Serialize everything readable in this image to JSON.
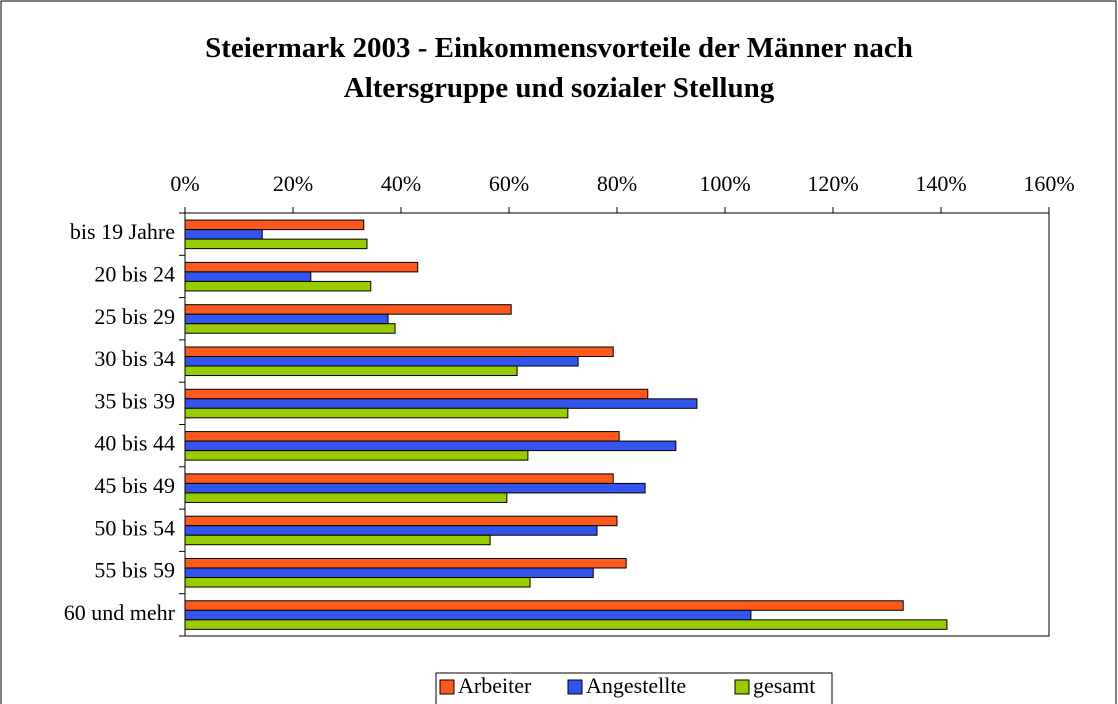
{
  "chart_data": {
    "type": "hbar",
    "title": "Steiermark 2003 - Einkommensvorteile der Männer nach Altersgruppe und sozialer Stellung",
    "categories": [
      "bis 19 Jahre",
      "20 bis 24",
      "25 bis 29",
      "30 bis 34",
      "35 bis 39",
      "40 bis 44",
      "45 bis 49",
      "50 bis 54",
      "55 bis 59",
      "60 und mehr"
    ],
    "series": [
      {
        "name": "Arbeiter",
        "color": "#ff5a1e",
        "values": [
          33.1,
          43.1,
          60.4,
          79.3,
          85.7,
          80.4,
          79.3,
          80,
          81.7,
          133
        ]
      },
      {
        "name": "Angestellte",
        "color": "#3355ee",
        "values": [
          14.3,
          23.3,
          37.6,
          72.8,
          94.8,
          90.9,
          85.2,
          76.3,
          75.6,
          104.8
        ]
      },
      {
        "name": "gesamt",
        "color": "#99cc00",
        "values": [
          33.7,
          34.4,
          38.9,
          61.5,
          70.9,
          63.5,
          59.6,
          56.5,
          63.9,
          141.1
        ]
      }
    ],
    "xlim": [
      0,
      160
    ],
    "xticks": [
      {
        "value": 0,
        "label": "0%"
      },
      {
        "value": 20,
        "label": "20%"
      },
      {
        "value": 40,
        "label": "40%"
      },
      {
        "value": 60,
        "label": "60%"
      },
      {
        "value": 80,
        "label": "80%"
      },
      {
        "value": 100,
        "label": "100%"
      },
      {
        "value": 120,
        "label": "120%"
      },
      {
        "value": 140,
        "label": "140%"
      },
      {
        "value": 160,
        "label": "160%"
      }
    ],
    "legend": "bottom"
  }
}
